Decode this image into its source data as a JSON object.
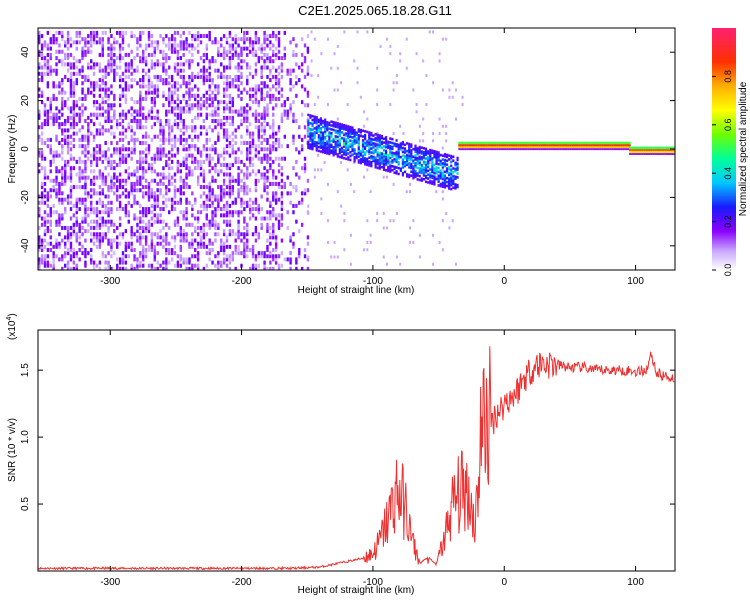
{
  "title": "C2E1.2025.065.18.28.G11",
  "colors": {
    "axis": "#000000",
    "snr_line": "#ef3030",
    "spec_low": "#8000ff",
    "spec_mid": "#00ffcc",
    "spec_high": "#ff0000"
  },
  "chart_data": [
    {
      "type": "heatmap",
      "title": "",
      "xlabel": "Height of straight line (km)",
      "ylabel": "Frequency (Hz)",
      "xlim": [
        -355,
        130
      ],
      "ylim": [
        -50,
        50
      ],
      "x_ticks": [
        -300,
        -200,
        -100,
        0,
        100
      ],
      "y_ticks": [
        -40,
        -20,
        0,
        20,
        40
      ],
      "x_tick_labels": [
        "-300",
        "-200",
        "-100",
        "0",
        "100"
      ],
      "y_tick_labels": [
        "-40",
        "-20",
        "0",
        "20",
        "40"
      ],
      "colorbar": {
        "label": "Normalized spectral amplitude",
        "range": [
          0,
          1
        ],
        "ticks": [
          0.0,
          0.2,
          0.4,
          0.6,
          0.8
        ],
        "tick_labels": [
          "0.0",
          "0.2",
          "0.4",
          "0.6",
          "0.8"
        ]
      },
      "regions": [
        {
          "x_range": [
            -355,
            -150
          ],
          "y_range": [
            -50,
            50
          ],
          "amplitude": 0.2,
          "note": "diffuse broadband noise"
        },
        {
          "x_range": [
            -150,
            -35
          ],
          "center_y": [
            8,
            -10
          ],
          "amplitude": 0.4
        },
        {
          "x_range": [
            -35,
            95
          ],
          "center_y": [
            2,
            2
          ],
          "amplitude": 0.95
        },
        {
          "x_range": [
            95,
            130
          ],
          "center_y": [
            0,
            0
          ],
          "amplitude": 0.9
        }
      ]
    },
    {
      "type": "line",
      "title": "",
      "xlabel": "Height of straight line (km)",
      "ylabel": "SNR (10 * v/v)",
      "y_multiplier": "(x10",
      "y_multiplier_exp": "4",
      "y_multiplier_close": ")",
      "xlim": [
        -355,
        130
      ],
      "ylim": [
        0,
        1.8
      ],
      "x_ticks": [
        -300,
        -200,
        -100,
        0,
        100
      ],
      "y_ticks": [
        0.5,
        1.0,
        1.5
      ],
      "x_tick_labels": [
        "-300",
        "-200",
        "-100",
        "0",
        "100"
      ],
      "y_tick_labels": [
        "0.5",
        "1.0",
        "1.5"
      ],
      "series": [
        {
          "x": [
            -355,
            -300,
            -250,
            -200,
            -160,
            -140,
            -125,
            -110,
            -100,
            -95,
            -88,
            -82,
            -76,
            -70,
            -64,
            -58,
            -52,
            -46,
            -40,
            -34,
            -28,
            -22,
            -18,
            -14,
            -10,
            -6,
            -2,
            2,
            6,
            10,
            15,
            20,
            25,
            30,
            40,
            50,
            60,
            70,
            80,
            90,
            100,
            108,
            112,
            116,
            120,
            130
          ],
          "y": [
            0.02,
            0.02,
            0.02,
            0.02,
            0.02,
            0.03,
            0.06,
            0.09,
            0.13,
            0.22,
            0.4,
            0.6,
            0.5,
            0.22,
            0.06,
            0.1,
            0.05,
            0.22,
            0.48,
            0.58,
            0.62,
            0.35,
            1.0,
            1.15,
            1.1,
            1.18,
            1.22,
            1.28,
            1.3,
            1.35,
            1.44,
            1.5,
            1.54,
            1.55,
            1.54,
            1.52,
            1.52,
            1.5,
            1.5,
            1.5,
            1.49,
            1.5,
            1.62,
            1.48,
            1.46,
            1.44
          ]
        }
      ]
    }
  ]
}
